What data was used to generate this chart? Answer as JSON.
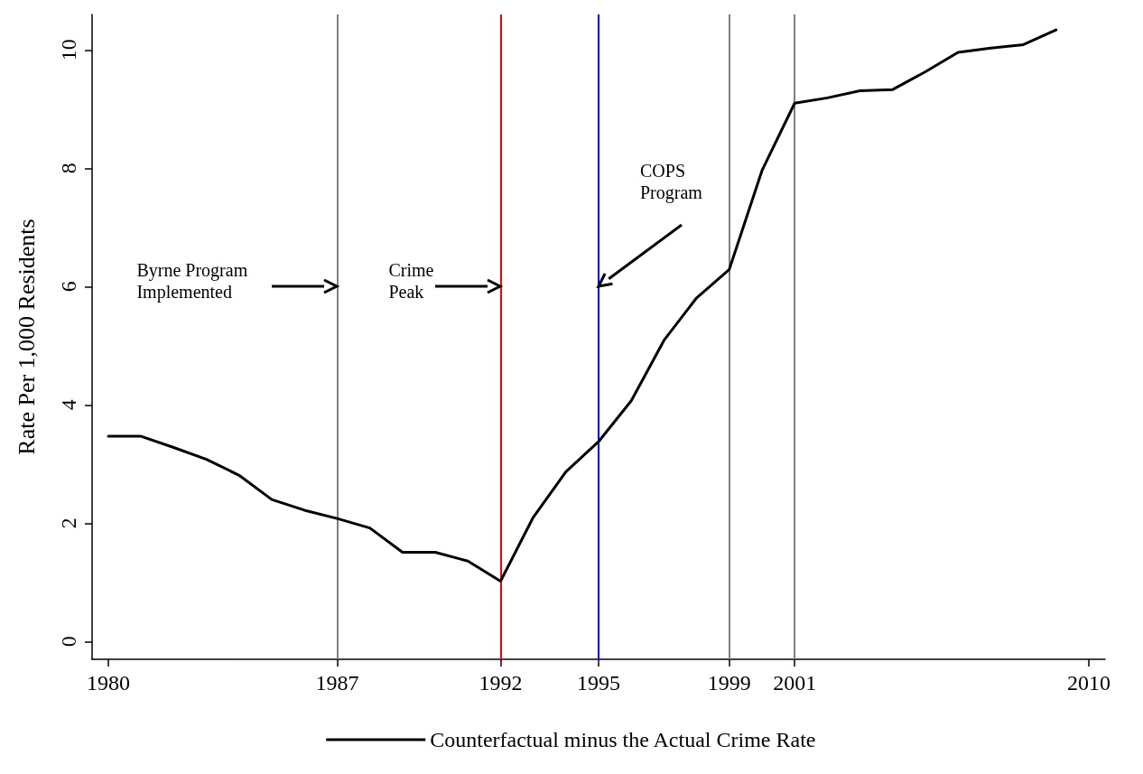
{
  "chart_data": {
    "type": "line",
    "ylabel": "Rate Per 1,000 Residents",
    "x": [
      1980,
      1981,
      1982,
      1983,
      1984,
      1985,
      1986,
      1987,
      1988,
      1989,
      1990,
      1991,
      1992,
      1993,
      1994,
      1995,
      1996,
      1997,
      1998,
      1999,
      2000,
      2001,
      2002,
      2003,
      2004,
      2005,
      2006,
      2007,
      2008,
      2009
    ],
    "series": [
      {
        "name": "Counterfactual minus the Actual Crime Rate",
        "color": "#000000",
        "values": [
          3.47,
          3.47,
          3.28,
          3.08,
          2.81,
          2.4,
          2.22,
          2.08,
          1.92,
          1.51,
          1.51,
          1.36,
          1.02,
          2.1,
          2.87,
          3.38,
          4.07,
          5.09,
          5.81,
          6.29,
          7.96,
          9.1,
          9.19,
          9.31,
          9.33,
          9.63,
          9.96,
          10.03,
          10.09,
          10.34
        ]
      }
    ],
    "xlim": [
      1979.5,
      2010.5
    ],
    "xticks": [
      1980,
      1987,
      1992,
      1995,
      1999,
      2001,
      2010
    ],
    "ylim": [
      -0.3,
      10.6
    ],
    "yticks": [
      0,
      2,
      4,
      6,
      8,
      10
    ],
    "ref_lines": [
      {
        "axis": "x",
        "value": 1987,
        "color": "#808080"
      },
      {
        "axis": "x",
        "value": 1992,
        "color": "#ff0000"
      },
      {
        "axis": "x",
        "value": 1995,
        "color": "#0000ff"
      },
      {
        "axis": "x",
        "value": 1999,
        "color": "#808080"
      },
      {
        "axis": "x",
        "value": 2001,
        "color": "#808080"
      }
    ],
    "annotations": [
      "Byrne Program\nImplemented",
      "Crime\nPeak",
      "COPS\nProgram"
    ],
    "grid": false,
    "legend": "bottom",
    "marker": "none",
    "line_style": "solid"
  }
}
